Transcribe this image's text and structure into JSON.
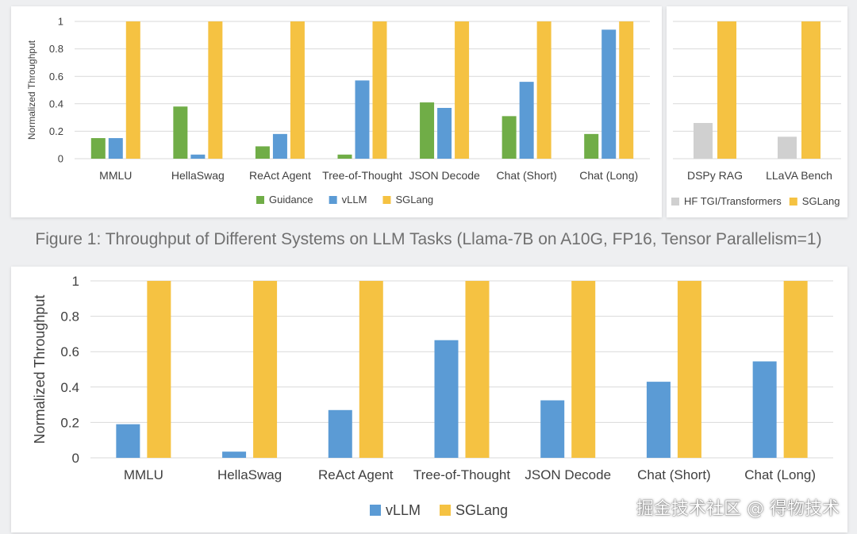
{
  "caption": "Figure 1: Throughput of Different Systems on LLM Tasks (Llama-7B on A10G, FP16, Tensor Parallelism=1)",
  "watermark": "掘金技术社区 @ 得物技术",
  "colors": {
    "Guidance": "#70ad47",
    "vLLM": "#5b9bd5",
    "SGLang": "#f5c242",
    "HF TGI/Transformers": "#d0d0d0",
    "grid": "#d9d9d9"
  },
  "chart_data": [
    {
      "type": "bar",
      "ylabel": "Normalized Throughput",
      "xlabel": "",
      "ylim": [
        0,
        1
      ],
      "yticks": [
        "0",
        "0.2",
        "0.4",
        "0.6",
        "0.8",
        "1"
      ],
      "legend_position": "bottom",
      "categories": [
        "MMLU",
        "HellaSwag",
        "ReAct Agent",
        "Tree-of-Thought",
        "JSON Decode",
        "Chat (Short)",
        "Chat (Long)"
      ],
      "series": [
        {
          "name": "Guidance",
          "values": [
            0.15,
            0.38,
            0.09,
            0.03,
            0.41,
            0.31,
            0.18
          ]
        },
        {
          "name": "vLLM",
          "values": [
            0.15,
            0.03,
            0.18,
            0.57,
            0.37,
            0.56,
            0.94
          ]
        },
        {
          "name": "SGLang",
          "values": [
            1,
            1,
            1,
            1,
            1,
            1,
            1
          ]
        }
      ]
    },
    {
      "type": "bar",
      "ylabel": "",
      "xlabel": "",
      "ylim": [
        0,
        1
      ],
      "legend_position": "bottom",
      "categories": [
        "DSPy RAG",
        "LLaVA Bench"
      ],
      "series": [
        {
          "name": "HF TGI/Transformers",
          "values": [
            0.26,
            0.16
          ]
        },
        {
          "name": "SGLang",
          "values": [
            1,
            1
          ]
        }
      ]
    },
    {
      "type": "bar",
      "ylabel": "Normalized Throughput",
      "xlabel": "",
      "ylim": [
        0,
        1
      ],
      "yticks": [
        "0",
        "0.2",
        "0.4",
        "0.6",
        "0.8",
        "1"
      ],
      "legend_position": "bottom",
      "categories": [
        "MMLU",
        "HellaSwag",
        "ReAct Agent",
        "Tree-of-Thought",
        "JSON Decode",
        "Chat (Short)",
        "Chat (Long)"
      ],
      "series": [
        {
          "name": "vLLM",
          "values": [
            0.19,
            0.035,
            0.27,
            0.665,
            0.325,
            0.43,
            0.545
          ]
        },
        {
          "name": "SGLang",
          "values": [
            1,
            1,
            1,
            1,
            1,
            1,
            1
          ]
        }
      ]
    }
  ]
}
